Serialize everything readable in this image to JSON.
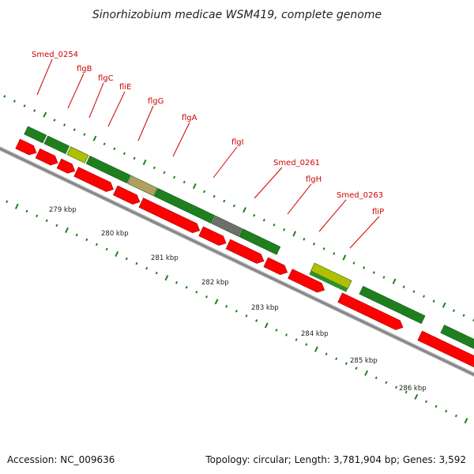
{
  "title": "Sinorhizobium medicae WSM419, complete genome",
  "footer": {
    "accession": "Accession: NC_009636",
    "topology": "Topology: circular; Length: 3,781,904 bp; Genes: 3,592"
  },
  "colors": {
    "cds": "#ff0000",
    "gene": "#1f7f1f",
    "gene_alt": "#b0c000",
    "pseudo_tan": "#b0a060",
    "gray_block": "#6e6e6e",
    "backbone": "#8a8a8a",
    "label": "#d00000",
    "tick": "#1f7f1f"
  },
  "gene_labels": [
    "Smed_0254",
    "flgB",
    "flgC",
    "fliE",
    "flgG",
    "flgA",
    "flgI",
    "Smed_0261",
    "flgH",
    "Smed_0263",
    "fliP"
  ],
  "kbp_labels": [
    "279 kbp",
    "280 kbp",
    "281 kbp",
    "282 kbp",
    "283 kbp",
    "284 kbp",
    "285 kbp",
    "286 kbp"
  ]
}
